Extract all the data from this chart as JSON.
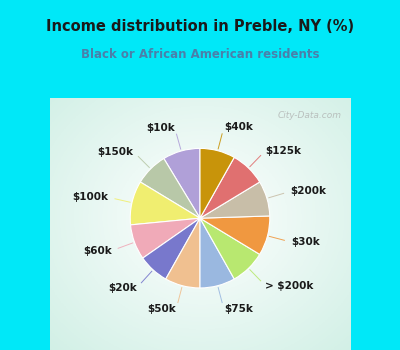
{
  "title": "Income distribution in Preble, NY (%)",
  "subtitle": "Black or African American residents",
  "title_color": "#1a1a1a",
  "subtitle_color": "#4a7faa",
  "background_outer": "#00e8f8",
  "background_chart": "#d8f0e8",
  "labels": [
    "$10k",
    "$150k",
    "$100k",
    "$60k",
    "$20k",
    "$50k",
    "$75k",
    "> $200k",
    "$30k",
    "$200k",
    "$125k",
    "$40k"
  ],
  "values": [
    8.5,
    7.5,
    10,
    8,
    7,
    8,
    8,
    8,
    9,
    8,
    8,
    8
  ],
  "colors": [
    "#b0a0d8",
    "#b8c8a8",
    "#f0ee70",
    "#f0aab8",
    "#7878cc",
    "#f0c090",
    "#9ab8e0",
    "#b8e870",
    "#f09840",
    "#c8bea8",
    "#e07070",
    "#c8940a"
  ],
  "startangle": 90,
  "label_fontsize": 7.5,
  "wedge_linewidth": 0.8,
  "wedge_edgecolor": "#ffffff",
  "label_color": "#1a1a1a"
}
